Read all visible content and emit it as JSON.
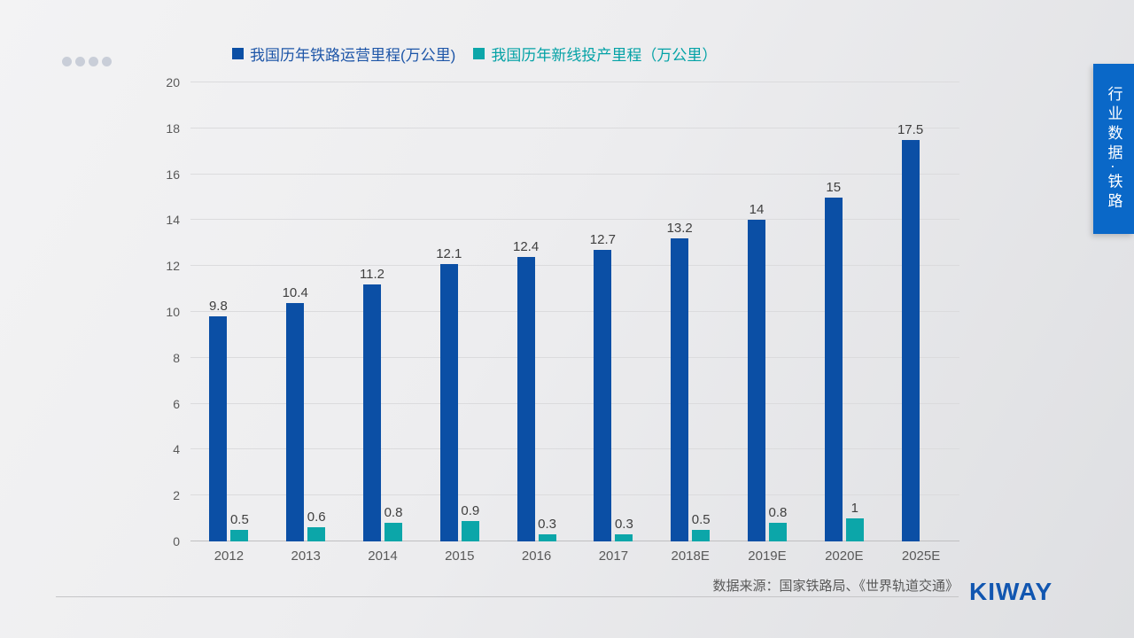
{
  "side_tab": {
    "label": "行业数据·铁路"
  },
  "footer": {
    "source_note": "数据来源：国家铁路局、《世界轨道交通》",
    "brand": "KIWAY"
  },
  "colors": {
    "bar_blue": "#0b4fa5",
    "bar_teal": "#0ca6a9",
    "side_tab_bg": "#0a68c8",
    "brand_blue": "#1156b0",
    "grid_line": "#dbdbdd",
    "axis_line": "#bfbfc1",
    "tick_text": "#595959",
    "value_text": "#3f3f3f"
  },
  "chart_data": {
    "type": "bar",
    "categories": [
      "2012",
      "2013",
      "2014",
      "2015",
      "2016",
      "2017",
      "2018E",
      "2019E",
      "2020E",
      "2025E"
    ],
    "series": [
      {
        "name": "我国历年铁路运营里程(万公里)",
        "color": "#0b4fa5",
        "label_color": "#1e56a8",
        "values": [
          9.8,
          10.4,
          11.2,
          12.1,
          12.4,
          12.7,
          13.2,
          14,
          15,
          17.5
        ]
      },
      {
        "name": "我国历年新线投产里程（万公里）",
        "color": "#0ca6a9",
        "label_color": "#04a2a6",
        "values": [
          0.5,
          0.6,
          0.8,
          0.9,
          0.3,
          0.3,
          0.5,
          0.8,
          1,
          null
        ]
      }
    ],
    "ylim": [
      0,
      20
    ],
    "ytick_step": 2,
    "grid": true,
    "legend_position": "top",
    "data_labels": true
  }
}
